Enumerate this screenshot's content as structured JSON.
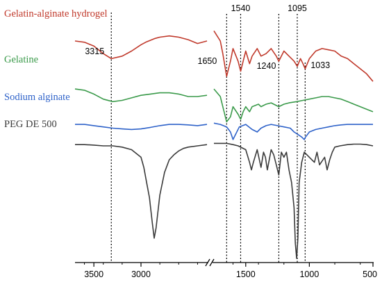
{
  "chart_data": {
    "type": "line",
    "title": "",
    "xlabel": "",
    "ylabel": "",
    "x_axis": {
      "reversed": true,
      "broken": true,
      "segments": [
        [
          3700,
          2300
        ],
        [
          1750,
          500
        ]
      ],
      "ticks": [
        3500,
        3000,
        1500,
        1000,
        500
      ],
      "tick_labels": [
        "3500",
        "3000",
        "1500",
        "1000",
        "500"
      ]
    },
    "grid": false,
    "legend": "inline-left",
    "series": [
      {
        "name": "Gelatin-alginate hydrogel",
        "color": "#c0392b",
        "x": [
          3700,
          3600,
          3500,
          3400,
          3315,
          3200,
          3100,
          3000,
          2950,
          2850,
          2800,
          2700,
          2600,
          2500,
          2400,
          2300,
          1750,
          1700,
          1680,
          1650,
          1620,
          1600,
          1560,
          1540,
          1520,
          1500,
          1470,
          1450,
          1410,
          1380,
          1340,
          1300,
          1260,
          1240,
          1200,
          1160,
          1120,
          1095,
          1070,
          1050,
          1033,
          1000,
          950,
          900,
          850,
          800,
          750,
          700,
          650,
          600,
          550,
          500
        ],
        "y": [
          0.86,
          0.855,
          0.84,
          0.81,
          0.79,
          0.8,
          0.82,
          0.845,
          0.855,
          0.87,
          0.875,
          0.88,
          0.875,
          0.865,
          0.85,
          0.86,
          0.9,
          0.86,
          0.81,
          0.72,
          0.78,
          0.83,
          0.78,
          0.74,
          0.78,
          0.82,
          0.77,
          0.8,
          0.83,
          0.8,
          0.81,
          0.83,
          0.8,
          0.78,
          0.82,
          0.8,
          0.78,
          0.76,
          0.79,
          0.77,
          0.75,
          0.79,
          0.82,
          0.83,
          0.825,
          0.82,
          0.8,
          0.79,
          0.77,
          0.75,
          0.73,
          0.7
        ]
      },
      {
        "name": "Gelatine",
        "color": "#3a9a4a",
        "x": [
          3700,
          3600,
          3500,
          3400,
          3300,
          3200,
          3100,
          3000,
          2900,
          2800,
          2700,
          2600,
          2500,
          2400,
          2300,
          1750,
          1700,
          1680,
          1650,
          1620,
          1600,
          1560,
          1540,
          1520,
          1500,
          1470,
          1450,
          1400,
          1380,
          1340,
          1300,
          1240,
          1200,
          1160,
          1100,
          1050,
          1000,
          950,
          900,
          850,
          800,
          750,
          700,
          650,
          600,
          550,
          500
        ],
        "y": [
          0.67,
          0.665,
          0.65,
          0.63,
          0.62,
          0.625,
          0.635,
          0.645,
          0.65,
          0.655,
          0.655,
          0.65,
          0.64,
          0.64,
          0.645,
          0.67,
          0.64,
          0.6,
          0.54,
          0.56,
          0.6,
          0.57,
          0.55,
          0.58,
          0.6,
          0.58,
          0.6,
          0.61,
          0.6,
          0.61,
          0.615,
          0.6,
          0.61,
          0.615,
          0.62,
          0.625,
          0.63,
          0.635,
          0.64,
          0.64,
          0.635,
          0.63,
          0.62,
          0.61,
          0.6,
          0.59,
          0.58
        ]
      },
      {
        "name": "Sodium alginate",
        "color": "#2e62c9",
        "x": [
          3700,
          3600,
          3500,
          3400,
          3300,
          3200,
          3100,
          3000,
          2900,
          2800,
          2700,
          2600,
          2500,
          2400,
          2300,
          1750,
          1700,
          1650,
          1620,
          1600,
          1580,
          1550,
          1500,
          1450,
          1410,
          1380,
          1340,
          1300,
          1250,
          1200,
          1150,
          1120,
          1090,
          1060,
          1040,
          1030,
          1000,
          950,
          900,
          850,
          800,
          750,
          700,
          650,
          600,
          550,
          500
        ],
        "y": [
          0.53,
          0.53,
          0.525,
          0.52,
          0.515,
          0.512,
          0.51,
          0.512,
          0.518,
          0.525,
          0.53,
          0.53,
          0.528,
          0.525,
          0.53,
          0.535,
          0.53,
          0.52,
          0.5,
          0.47,
          0.49,
          0.52,
          0.53,
          0.51,
          0.5,
          0.515,
          0.525,
          0.53,
          0.525,
          0.52,
          0.515,
          0.5,
          0.49,
          0.48,
          0.47,
          0.48,
          0.5,
          0.51,
          0.515,
          0.52,
          0.525,
          0.528,
          0.53,
          0.53,
          0.53,
          0.53,
          0.53
        ]
      },
      {
        "name": "PEG DE 500",
        "color": "#3a3a3a",
        "x": [
          3700,
          3600,
          3500,
          3400,
          3300,
          3200,
          3100,
          3000,
          2970,
          2940,
          2910,
          2880,
          2860,
          2840,
          2800,
          2750,
          2700,
          2650,
          2600,
          2550,
          2500,
          2400,
          2300,
          1750,
          1700,
          1650,
          1600,
          1560,
          1500,
          1470,
          1455,
          1440,
          1410,
          1380,
          1360,
          1345,
          1330,
          1300,
          1280,
          1260,
          1240,
          1220,
          1200,
          1180,
          1160,
          1140,
          1120,
          1110,
          1100,
          1090,
          1080,
          1060,
          1040,
          1000,
          960,
          940,
          920,
          880,
          860,
          840,
          820,
          800,
          760,
          700,
          650,
          600,
          550,
          500
        ],
        "y": [
          0.45,
          0.45,
          0.448,
          0.445,
          0.445,
          0.44,
          0.43,
          0.4,
          0.36,
          0.3,
          0.24,
          0.14,
          0.08,
          0.12,
          0.25,
          0.34,
          0.39,
          0.41,
          0.425,
          0.435,
          0.44,
          0.445,
          0.45,
          0.455,
          0.455,
          0.455,
          0.45,
          0.445,
          0.43,
          0.38,
          0.35,
          0.38,
          0.43,
          0.36,
          0.42,
          0.4,
          0.35,
          0.43,
          0.41,
          0.37,
          0.33,
          0.42,
          0.4,
          0.42,
          0.35,
          0.3,
          0.2,
          0.06,
          0.0,
          0.08,
          0.3,
          0.38,
          0.42,
          0.4,
          0.38,
          0.42,
          0.37,
          0.4,
          0.35,
          0.39,
          0.42,
          0.44,
          0.445,
          0.45,
          0.452,
          0.452,
          0.45,
          0.445
        ]
      }
    ],
    "annotations": [
      {
        "text": "3315",
        "x": 3315,
        "position": "below-left"
      },
      {
        "text": "1650",
        "x": 1650,
        "position": "left"
      },
      {
        "text": "1540",
        "x": 1540,
        "position": "top"
      },
      {
        "text": "1240",
        "x": 1240,
        "position": "below-left"
      },
      {
        "text": "1095",
        "x": 1095,
        "position": "top"
      },
      {
        "text": "1033",
        "x": 1033,
        "position": "right"
      }
    ],
    "reference_lines_x": [
      3315,
      1650,
      1540,
      1240,
      1095,
      1033
    ]
  }
}
